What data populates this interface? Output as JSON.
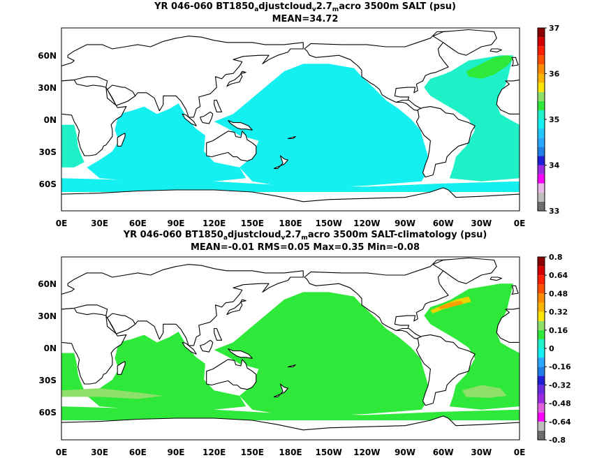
{
  "colors": {
    "salt_33": "#6e6e6e",
    "salt_33_2": "#bdbdbd",
    "salt_33_4": "#e8b7e8",
    "salt_33_6": "#ff00ff",
    "salt_33_8": "#9a2be0",
    "salt_34": "#1f1fd6",
    "salt_34_2": "#1f7fe6",
    "salt_34_4": "#2aa8ff",
    "salt_34_6": "#1ec8ff",
    "salt_34_8": "#14f0f0",
    "salt_35": "#1ef0c8",
    "salt_35_2": "#2ee83a",
    "salt_35_4": "#8fe06a",
    "salt_35_6": "#ffe600",
    "salt_35_8": "#ffb400",
    "salt_36": "#ff8c00",
    "salt_36_2": "#ff5000",
    "salt_36_4": "#ff1e00",
    "salt_36_6": "#d40000",
    "salt_37": "#8b0000",
    "diff_neg_fill": "#1ee8c0",
    "diff_pos_fill": "#2ee83a",
    "diff_strong": "#8fe06a",
    "diff_warm": "#f0d400",
    "diff_hot": "#ffa000"
  },
  "chart_data": [
    {
      "type": "heatmap",
      "title": "YR 046-060 BT1850",
      "title_sub1": "a",
      "title_mid": "djustcloud",
      "title_sub2": "v",
      "title_mid2": "2.7",
      "title_sub3": "m",
      "title_end": "acro 3500m SALT (psu)",
      "subtitle": "MEAN=34.72",
      "variable": "SALT",
      "depth": "3500m",
      "units": "psu",
      "mean": 34.72,
      "x_ticks": [
        "0E",
        "30E",
        "60E",
        "90E",
        "120E",
        "150E",
        "180E",
        "150W",
        "120W",
        "90W",
        "60W",
        "30W",
        "0E"
      ],
      "y_ticks": [
        "60N",
        "30N",
        "0N",
        "30S",
        "60S"
      ],
      "xlim": [
        0,
        360
      ],
      "ylim": [
        -80,
        90
      ],
      "colorbar": {
        "range": [
          33,
          37
        ],
        "tick_labels": [
          "33",
          "34",
          "35",
          "36",
          "37"
        ],
        "levels": [
          33,
          33.2,
          33.4,
          33.6,
          33.8,
          34,
          34.2,
          34.4,
          34.6,
          34.8,
          35,
          35.2,
          35.4,
          35.6,
          35.8,
          36,
          36.2,
          36.4,
          36.6,
          36.8,
          37
        ]
      },
      "regions": [
        {
          "name": "pacific_indian_southern",
          "value_range": [
            34.6,
            34.8
          ]
        },
        {
          "name": "atlantic",
          "value_range": [
            34.8,
            35.0
          ]
        },
        {
          "name": "north_atlantic_deep",
          "value_range": [
            35.0,
            35.2
          ]
        }
      ]
    },
    {
      "type": "heatmap",
      "title": "YR 046-060 BT1850",
      "title_sub1": "a",
      "title_mid": "djustcloud",
      "title_sub2": "v",
      "title_mid2": "2.7",
      "title_sub3": "m",
      "title_end": "acro 3500m SALT-climatology (psu)",
      "subtitle": "MEAN=-0.01   RMS=0.05   Max=0.35   Min=-0.08",
      "variable": "SALT-climatology",
      "depth": "3500m",
      "units": "psu",
      "mean": -0.01,
      "rms": 0.05,
      "max": 0.35,
      "min": -0.08,
      "x_ticks": [
        "0E",
        "30E",
        "60E",
        "90E",
        "120E",
        "150E",
        "180E",
        "150W",
        "120W",
        "90W",
        "60W",
        "30W",
        "0E"
      ],
      "y_ticks": [
        "60N",
        "30N",
        "0N",
        "30S",
        "60S"
      ],
      "xlim": [
        0,
        360
      ],
      "ylim": [
        -80,
        90
      ],
      "colorbar": {
        "range": [
          -0.8,
          0.8
        ],
        "tick_labels": [
          "-0.8",
          "-0.64",
          "-0.48",
          "-0.32",
          "-0.16",
          "0",
          "0.16",
          "0.32",
          "0.48",
          "0.64",
          "0.8"
        ],
        "levels": [
          -0.8,
          -0.72,
          -0.64,
          -0.56,
          -0.48,
          -0.4,
          -0.32,
          -0.24,
          -0.16,
          -0.08,
          0,
          0.08,
          0.16,
          0.24,
          0.32,
          0.4,
          0.48,
          0.56,
          0.64,
          0.72,
          0.8
        ]
      },
      "regions": [
        {
          "name": "most_ocean",
          "value_range": [
            -0.08,
            0
          ]
        },
        {
          "name": "southern_indian_strip",
          "value_range": [
            0.08,
            0.16
          ]
        },
        {
          "name": "gulf_stream",
          "value_range": [
            0.24,
            0.35
          ]
        }
      ]
    }
  ]
}
